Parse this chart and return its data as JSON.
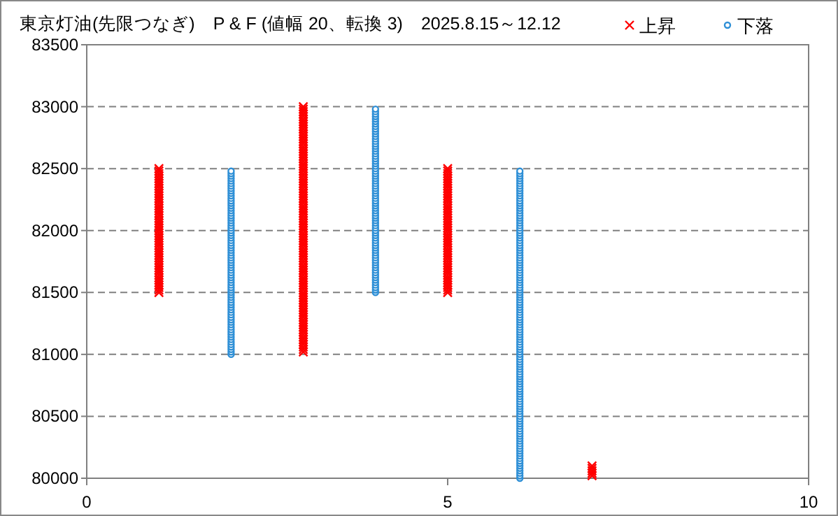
{
  "chart_data": {
    "type": "scatter",
    "title": "東京灯油(先限つなぎ)　P & F (値幅 20、転換 3)　2025.8.15～12.12",
    "xlim": [
      0,
      10
    ],
    "xticks": [
      0,
      5,
      10
    ],
    "ylim": [
      80000,
      83500
    ],
    "yticks": [
      80000,
      80500,
      81000,
      81500,
      82000,
      82500,
      83000,
      83500
    ],
    "grid": "y",
    "legend": "top right",
    "series": [
      {
        "name": "上昇",
        "color": "#ff0000",
        "marker": "cross",
        "x": [
          1,
          1,
          1,
          1,
          1,
          1,
          1,
          1,
          1,
          1,
          1,
          1,
          1,
          1,
          1,
          1,
          1,
          1,
          1,
          1,
          1,
          1,
          1,
          1,
          1,
          1,
          1,
          1,
          1,
          1,
          1,
          1,
          1,
          1,
          1,
          1,
          1,
          1,
          1,
          1,
          1,
          1,
          1,
          1,
          1,
          1,
          1,
          1,
          1,
          1,
          1,
          3,
          3,
          3,
          3,
          3,
          3,
          3,
          3,
          3,
          3,
          3,
          3,
          3,
          3,
          3,
          3,
          3,
          3,
          3,
          3,
          3,
          3,
          3,
          3,
          3,
          3,
          3,
          3,
          3,
          3,
          3,
          3,
          3,
          3,
          3,
          3,
          3,
          3,
          3,
          3,
          3,
          3,
          3,
          3,
          3,
          3,
          3,
          3,
          3,
          3,
          3,
          3,
          3,
          3,
          3,
          3,
          3,
          3,
          3,
          3,
          3,
          3,
          3,
          3,
          3,
          3,
          3,
          3,
          3,
          3,
          3,
          3,
          3,
          3,
          3,
          3,
          3,
          3,
          3,
          3,
          3,
          3,
          3,
          3,
          3,
          3,
          3,
          3,
          3,
          3,
          3,
          3,
          3,
          3,
          3,
          3,
          3,
          3,
          3,
          3,
          5,
          5,
          5,
          5,
          5,
          5,
          5,
          5,
          5,
          5,
          5,
          5,
          5,
          5,
          5,
          5,
          5,
          5,
          5,
          5,
          5,
          5,
          5,
          5,
          5,
          5,
          5,
          5,
          5,
          5,
          5,
          5,
          5,
          5,
          5,
          5,
          5,
          5,
          5,
          5,
          5,
          5,
          5,
          5,
          5,
          5,
          5,
          5,
          5,
          5,
          5,
          7,
          7,
          7,
          7,
          7
        ],
        "values": [
          81500,
          81520,
          81540,
          81560,
          81580,
          81600,
          81620,
          81640,
          81660,
          81680,
          81700,
          81720,
          81740,
          81760,
          81780,
          81800,
          81820,
          81840,
          81860,
          81880,
          81900,
          81920,
          81940,
          81960,
          81980,
          82000,
          82020,
          82040,
          82060,
          82080,
          82100,
          82120,
          82140,
          82160,
          82180,
          82200,
          82220,
          82240,
          82260,
          82280,
          82300,
          82320,
          82340,
          82360,
          82380,
          82400,
          82420,
          82440,
          82460,
          82480,
          82500,
          81020,
          81040,
          81060,
          81080,
          81100,
          81120,
          81140,
          81160,
          81180,
          81200,
          81220,
          81240,
          81260,
          81280,
          81300,
          81320,
          81340,
          81360,
          81380,
          81400,
          81420,
          81440,
          81460,
          81480,
          81500,
          81520,
          81540,
          81560,
          81580,
          81600,
          81620,
          81640,
          81660,
          81680,
          81700,
          81720,
          81740,
          81760,
          81780,
          81800,
          81820,
          81840,
          81860,
          81880,
          81900,
          81920,
          81940,
          81960,
          81980,
          82000,
          82020,
          82040,
          82060,
          82080,
          82100,
          82120,
          82140,
          82160,
          82180,
          82200,
          82220,
          82240,
          82260,
          82280,
          82300,
          82320,
          82340,
          82360,
          82380,
          82400,
          82420,
          82440,
          82460,
          82480,
          82500,
          82520,
          82540,
          82560,
          82580,
          82600,
          82620,
          82640,
          82660,
          82680,
          82700,
          82720,
          82740,
          82760,
          82780,
          82800,
          82820,
          82840,
          82860,
          82880,
          82900,
          82920,
          82940,
          82960,
          82980,
          83000,
          81500,
          81520,
          81540,
          81560,
          81580,
          81600,
          81620,
          81640,
          81660,
          81680,
          81700,
          81720,
          81740,
          81760,
          81780,
          81800,
          81820,
          81840,
          81860,
          81880,
          81900,
          81920,
          81940,
          81960,
          81980,
          82000,
          82020,
          82040,
          82060,
          82080,
          82100,
          82120,
          82140,
          82160,
          82180,
          82200,
          82220,
          82240,
          82260,
          82280,
          82300,
          82320,
          82340,
          82360,
          82380,
          82400,
          82420,
          82440,
          82460,
          82480,
          82500,
          80020,
          80040,
          80060,
          80080,
          80100
        ]
      },
      {
        "name": "下落",
        "color": "#2e8fd6",
        "marker": "circle",
        "x": [
          2,
          2,
          2,
          2,
          2,
          2,
          2,
          2,
          2,
          2,
          2,
          2,
          2,
          2,
          2,
          2,
          2,
          2,
          2,
          2,
          2,
          2,
          2,
          2,
          2,
          2,
          2,
          2,
          2,
          2,
          2,
          2,
          2,
          2,
          2,
          2,
          2,
          2,
          2,
          2,
          2,
          2,
          2,
          2,
          2,
          2,
          2,
          2,
          2,
          2,
          2,
          2,
          2,
          2,
          2,
          2,
          2,
          2,
          2,
          2,
          2,
          2,
          2,
          2,
          2,
          2,
          2,
          2,
          2,
          2,
          2,
          2,
          2,
          2,
          2,
          4,
          4,
          4,
          4,
          4,
          4,
          4,
          4,
          4,
          4,
          4,
          4,
          4,
          4,
          4,
          4,
          4,
          4,
          4,
          4,
          4,
          4,
          4,
          4,
          4,
          4,
          4,
          4,
          4,
          4,
          4,
          4,
          4,
          4,
          4,
          4,
          4,
          4,
          4,
          4,
          4,
          4,
          4,
          4,
          4,
          4,
          4,
          4,
          4,
          4,
          4,
          4,
          4,
          4,
          4,
          4,
          4,
          4,
          4,
          4,
          4,
          4,
          4,
          4,
          4,
          4,
          4,
          4,
          4,
          4,
          4,
          4,
          4,
          4,
          4,
          6,
          6,
          6,
          6,
          6,
          6,
          6,
          6,
          6,
          6,
          6,
          6,
          6,
          6,
          6,
          6,
          6,
          6,
          6,
          6,
          6,
          6,
          6,
          6,
          6,
          6,
          6,
          6,
          6,
          6,
          6,
          6,
          6,
          6,
          6,
          6,
          6,
          6,
          6,
          6,
          6,
          6,
          6,
          6,
          6,
          6,
          6,
          6,
          6,
          6,
          6,
          6,
          6,
          6,
          6,
          6,
          6,
          6,
          6,
          6,
          6,
          6,
          6,
          6,
          6,
          6,
          6,
          6,
          6,
          6,
          6,
          6,
          6,
          6,
          6,
          6,
          6,
          6,
          6,
          6,
          6,
          6,
          6,
          6,
          6,
          6,
          6,
          6,
          6,
          6,
          6,
          6,
          6,
          6,
          6,
          6,
          6,
          6,
          6,
          6,
          6,
          6,
          6,
          6,
          6,
          6,
          6,
          6,
          6,
          6,
          6,
          6,
          6,
          6,
          6,
          6,
          6,
          6,
          6,
          6,
          6,
          6,
          6,
          6,
          6
        ],
        "values": [
          81000,
          81020,
          81040,
          81060,
          81080,
          81100,
          81120,
          81140,
          81160,
          81180,
          81200,
          81220,
          81240,
          81260,
          81280,
          81300,
          81320,
          81340,
          81360,
          81380,
          81400,
          81420,
          81440,
          81460,
          81480,
          81500,
          81520,
          81540,
          81560,
          81580,
          81600,
          81620,
          81640,
          81660,
          81680,
          81700,
          81720,
          81740,
          81760,
          81780,
          81800,
          81820,
          81840,
          81860,
          81880,
          81900,
          81920,
          81940,
          81960,
          81980,
          82000,
          82020,
          82040,
          82060,
          82080,
          82100,
          82120,
          82140,
          82160,
          82180,
          82200,
          82220,
          82240,
          82260,
          82280,
          82300,
          82320,
          82340,
          82360,
          82380,
          82400,
          82420,
          82440,
          82460,
          82480,
          81500,
          81520,
          81540,
          81560,
          81580,
          81600,
          81620,
          81640,
          81660,
          81680,
          81700,
          81720,
          81740,
          81760,
          81780,
          81800,
          81820,
          81840,
          81860,
          81880,
          81900,
          81920,
          81940,
          81960,
          81980,
          82000,
          82020,
          82040,
          82060,
          82080,
          82100,
          82120,
          82140,
          82160,
          82180,
          82200,
          82220,
          82240,
          82260,
          82280,
          82300,
          82320,
          82340,
          82360,
          82380,
          82400,
          82420,
          82440,
          82460,
          82480,
          82500,
          82520,
          82540,
          82560,
          82580,
          82600,
          82620,
          82640,
          82660,
          82680,
          82700,
          82720,
          82740,
          82760,
          82780,
          82800,
          82820,
          82840,
          82860,
          82880,
          82900,
          82920,
          82940,
          82960,
          82980,
          80000,
          80020,
          80040,
          80060,
          80080,
          80100,
          80120,
          80140,
          80160,
          80180,
          80200,
          80220,
          80240,
          80260,
          80280,
          80300,
          80320,
          80340,
          80360,
          80380,
          80400,
          80420,
          80440,
          80460,
          80480,
          80500,
          80520,
          80540,
          80560,
          80580,
          80600,
          80620,
          80640,
          80660,
          80680,
          80700,
          80720,
          80740,
          80760,
          80780,
          80800,
          80820,
          80840,
          80860,
          80880,
          80900,
          80920,
          80940,
          80960,
          80980,
          81000,
          81020,
          81040,
          81060,
          81080,
          81100,
          81120,
          81140,
          81160,
          81180,
          81200,
          81220,
          81240,
          81260,
          81280,
          81300,
          81320,
          81340,
          81360,
          81380,
          81400,
          81420,
          81440,
          81460,
          81480,
          81500,
          81520,
          81540,
          81560,
          81580,
          81600,
          81620,
          81640,
          81660,
          81680,
          81700,
          81720,
          81740,
          81760,
          81780,
          81800,
          81820,
          81840,
          81860,
          81880,
          81900,
          81920,
          81940,
          81960,
          81980,
          82000,
          82020,
          82040,
          82060,
          82080,
          82100,
          82120,
          82140,
          82160,
          82180,
          82200,
          82220,
          82240,
          82260,
          82280,
          82300,
          82320,
          82340,
          82360,
          82380,
          82400,
          82420,
          82440,
          82460,
          82480
        ]
      }
    ]
  }
}
